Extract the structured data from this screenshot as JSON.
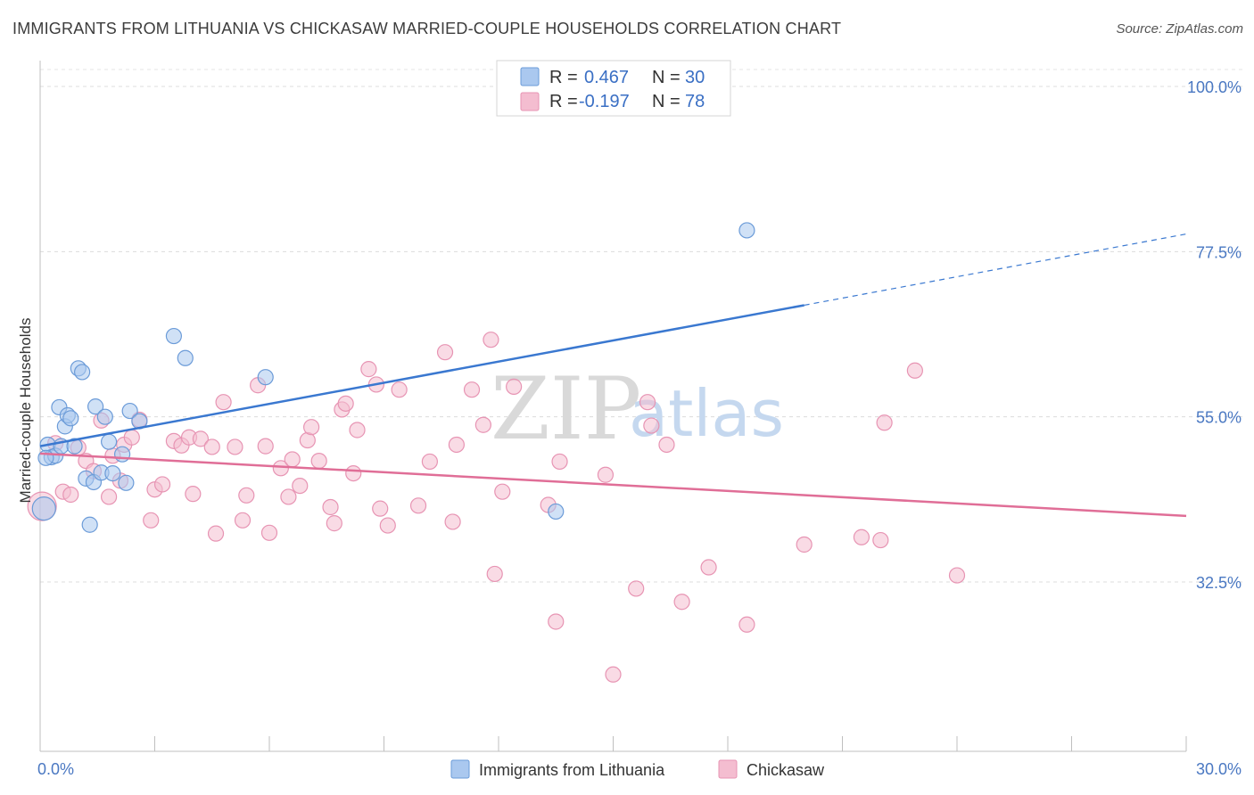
{
  "header": {
    "title": "IMMIGRANTS FROM LITHUANIA VS CHICKASAW MARRIED-COUPLE HOUSEHOLDS CORRELATION CHART",
    "source": "Source: ZipAtlas.com"
  },
  "watermark": {
    "part1": "ZIP",
    "part2": "atlas"
  },
  "colors": {
    "blue": "#3a78d0",
    "blue_fill": "#aac8ef",
    "blue_stroke": "#6b9bd8",
    "pink": "#e06e97",
    "pink_fill": "#f4bdd0",
    "pink_stroke": "#e794b3",
    "tick_label": "#4a78c2"
  },
  "legend": {
    "rows": [
      {
        "r_label": "R =",
        "r_value": "0.467",
        "n_label": "N =",
        "n_value": "30"
      },
      {
        "r_label": "R =",
        "r_value": "-0.197",
        "n_label": "N =",
        "n_value": "78"
      }
    ]
  },
  "chart_data": {
    "type": "scatter",
    "title": "IMMIGRANTS FROM LITHUANIA VS CHICKASAW MARRIED-COUPLE HOUSEHOLDS CORRELATION CHART",
    "xlabel": "",
    "ylabel": "Married-couple Households",
    "xlim": [
      0,
      30
    ],
    "ylim": [
      10,
      100
    ],
    "x_tick_labels": [
      "0.0%",
      "30.0%"
    ],
    "y_ticks": [
      32.5,
      55.0,
      77.5,
      100.0
    ],
    "y_tick_labels": [
      "32.5%",
      "55.0%",
      "77.5%",
      "100.0%"
    ],
    "grid": true,
    "legend_position": "bottom",
    "series": [
      {
        "name": "Immigrants from Lithuania",
        "r": 0.467,
        "n": 30,
        "trend": {
          "x0": 0.0,
          "y0": 51.0,
          "x1": 20.0,
          "y1": 70.2,
          "dash_to_x": 30.0,
          "dash_to_y": 79.9
        },
        "points": [
          [
            0.1,
            42.5
          ],
          [
            0.2,
            51.2
          ],
          [
            0.3,
            49.5
          ],
          [
            0.4,
            49.7
          ],
          [
            0.5,
            56.3
          ],
          [
            0.55,
            51.0
          ],
          [
            0.65,
            53.7
          ],
          [
            0.72,
            55.2
          ],
          [
            0.8,
            54.8
          ],
          [
            0.9,
            51.0
          ],
          [
            1.0,
            61.6
          ],
          [
            1.1,
            61.1
          ],
          [
            1.2,
            46.6
          ],
          [
            1.3,
            40.3
          ],
          [
            1.4,
            46.1
          ],
          [
            1.45,
            56.4
          ],
          [
            1.6,
            47.4
          ],
          [
            1.7,
            55.0
          ],
          [
            1.8,
            51.6
          ],
          [
            1.9,
            47.3
          ],
          [
            2.15,
            49.9
          ],
          [
            2.25,
            46.0
          ],
          [
            2.35,
            55.8
          ],
          [
            2.6,
            54.4
          ],
          [
            3.5,
            66.0
          ],
          [
            3.8,
            63.0
          ],
          [
            5.9,
            60.4
          ],
          [
            13.5,
            42.1
          ],
          [
            18.5,
            80.4
          ],
          [
            0.15,
            49.4
          ]
        ]
      },
      {
        "name": "Chickasaw",
        "r": -0.197,
        "n": 78,
        "trend": {
          "x0": 0.0,
          "y0": 50.0,
          "x1": 30.0,
          "y1": 41.5
        },
        "points": [
          [
            0.05,
            42.8
          ],
          [
            0.4,
            51.4
          ],
          [
            0.6,
            44.8
          ],
          [
            0.8,
            44.4
          ],
          [
            1.0,
            50.8
          ],
          [
            1.2,
            49.0
          ],
          [
            1.4,
            47.6
          ],
          [
            1.6,
            54.5
          ],
          [
            1.8,
            44.1
          ],
          [
            1.9,
            49.7
          ],
          [
            2.1,
            46.3
          ],
          [
            2.2,
            51.2
          ],
          [
            2.4,
            52.2
          ],
          [
            2.6,
            54.6
          ],
          [
            2.9,
            40.9
          ],
          [
            3.0,
            45.1
          ],
          [
            3.2,
            45.8
          ],
          [
            3.5,
            51.7
          ],
          [
            3.7,
            51.1
          ],
          [
            3.9,
            52.2
          ],
          [
            4.0,
            44.5
          ],
          [
            4.2,
            52.0
          ],
          [
            4.5,
            50.9
          ],
          [
            4.6,
            39.1
          ],
          [
            4.8,
            57.0
          ],
          [
            5.1,
            50.9
          ],
          [
            5.3,
            40.9
          ],
          [
            5.4,
            44.3
          ],
          [
            5.7,
            59.3
          ],
          [
            5.9,
            51.0
          ],
          [
            6.0,
            39.2
          ],
          [
            6.3,
            48.0
          ],
          [
            6.5,
            44.1
          ],
          [
            6.6,
            49.2
          ],
          [
            6.8,
            45.6
          ],
          [
            7.0,
            51.8
          ],
          [
            7.1,
            53.6
          ],
          [
            7.3,
            49.0
          ],
          [
            7.6,
            42.7
          ],
          [
            7.7,
            40.5
          ],
          [
            7.9,
            56.0
          ],
          [
            8.0,
            56.8
          ],
          [
            8.2,
            47.3
          ],
          [
            8.3,
            53.2
          ],
          [
            8.6,
            61.5
          ],
          [
            8.8,
            59.4
          ],
          [
            8.9,
            42.5
          ],
          [
            9.1,
            40.2
          ],
          [
            9.4,
            58.7
          ],
          [
            9.9,
            42.9
          ],
          [
            10.2,
            48.9
          ],
          [
            10.6,
            63.8
          ],
          [
            10.8,
            40.7
          ],
          [
            10.9,
            51.2
          ],
          [
            11.3,
            58.7
          ],
          [
            11.6,
            53.9
          ],
          [
            11.8,
            65.5
          ],
          [
            11.9,
            33.6
          ],
          [
            12.1,
            44.8
          ],
          [
            12.4,
            59.1
          ],
          [
            13.3,
            43.0
          ],
          [
            13.5,
            27.1
          ],
          [
            13.6,
            48.9
          ],
          [
            14.8,
            47.1
          ],
          [
            15.0,
            19.9
          ],
          [
            15.6,
            31.6
          ],
          [
            15.9,
            57.0
          ],
          [
            16.0,
            53.8
          ],
          [
            16.4,
            51.2
          ],
          [
            16.8,
            29.8
          ],
          [
            17.5,
            34.5
          ],
          [
            18.5,
            26.7
          ],
          [
            20.0,
            37.6
          ],
          [
            21.5,
            38.6
          ],
          [
            22.0,
            38.2
          ],
          [
            22.1,
            54.2
          ],
          [
            22.9,
            61.3
          ],
          [
            24.0,
            33.4
          ]
        ]
      }
    ]
  }
}
